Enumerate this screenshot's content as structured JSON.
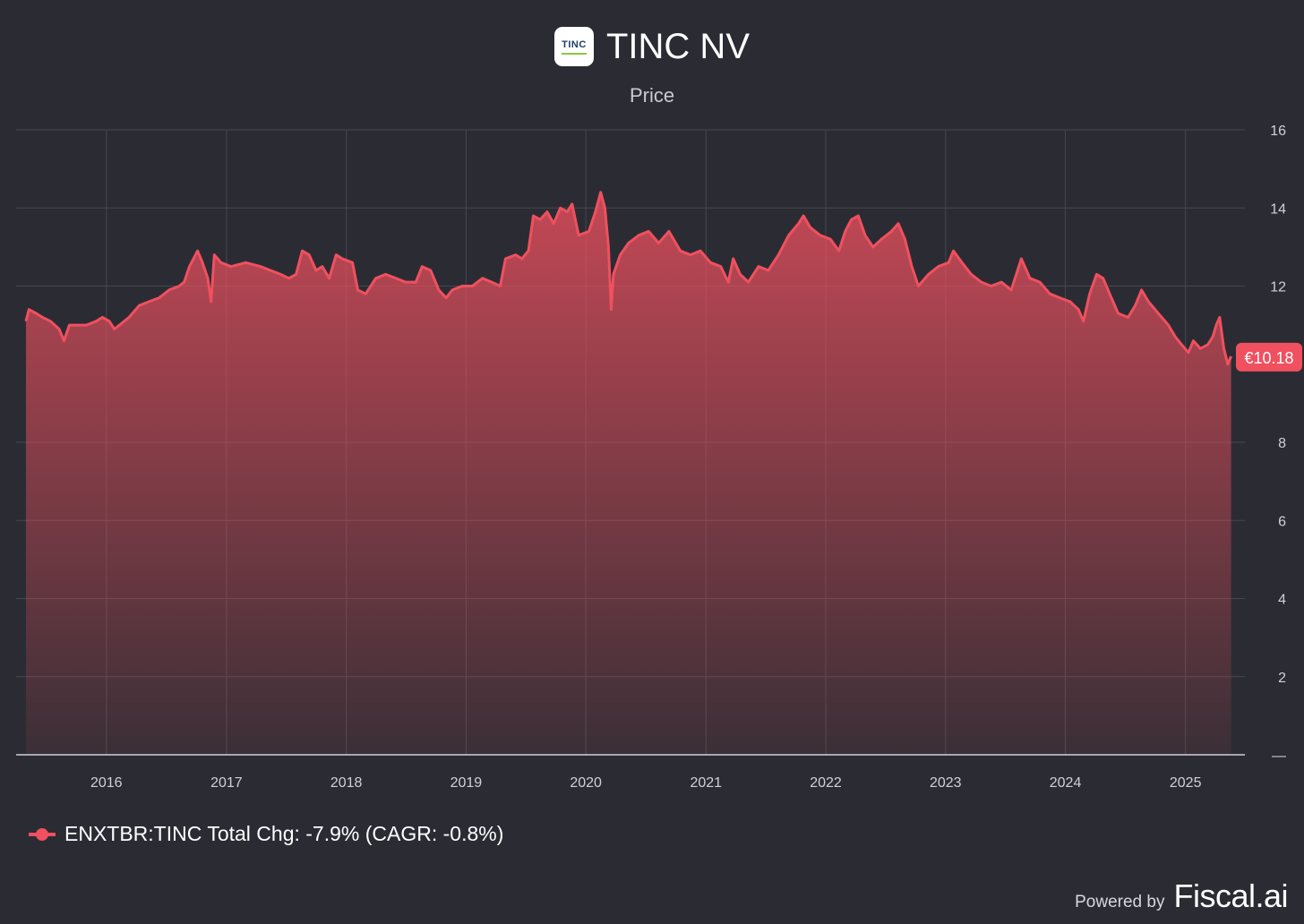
{
  "header": {
    "logo_text": "TINC",
    "title": "TINC NV",
    "subtitle": "Price"
  },
  "legend": {
    "label": "ENXTBR:TINC Total Chg: -7.9% (CAGR: -0.8%)"
  },
  "footer": {
    "powered_by": "Powered by",
    "brand": "Fiscal.ai"
  },
  "colors": {
    "background": "#2b2c33",
    "series": "#f0505f",
    "grid": "#44464f",
    "axis_text": "#d0d0d6"
  },
  "chart_data": {
    "type": "area",
    "title": "TINC NV",
    "subtitle": "Price",
    "series": [
      {
        "name": "ENXTBR:TINC",
        "points": [
          [
            "2015-05-01",
            11.1
          ],
          [
            "2015-05-10",
            11.4
          ],
          [
            "2015-06-01",
            11.3
          ],
          [
            "2015-06-20",
            11.2
          ],
          [
            "2015-07-15",
            11.1
          ],
          [
            "2015-08-10",
            10.9
          ],
          [
            "2015-08-25",
            10.6
          ],
          [
            "2015-09-10",
            11.0
          ],
          [
            "2015-10-01",
            11.0
          ],
          [
            "2015-11-01",
            11.0
          ],
          [
            "2015-12-01",
            11.1
          ],
          [
            "2015-12-20",
            11.2
          ],
          [
            "2016-01-10",
            11.1
          ],
          [
            "2016-01-25",
            10.9
          ],
          [
            "2016-02-10",
            11.0
          ],
          [
            "2016-03-10",
            11.2
          ],
          [
            "2016-04-10",
            11.5
          ],
          [
            "2016-05-10",
            11.6
          ],
          [
            "2016-06-10",
            11.7
          ],
          [
            "2016-07-10",
            11.9
          ],
          [
            "2016-08-10",
            12.0
          ],
          [
            "2016-08-25",
            12.1
          ],
          [
            "2016-09-10",
            12.5
          ],
          [
            "2016-10-05",
            12.9
          ],
          [
            "2016-10-20",
            12.6
          ],
          [
            "2016-11-05",
            12.2
          ],
          [
            "2016-11-15",
            11.6
          ],
          [
            "2016-11-25",
            12.8
          ],
          [
            "2016-12-15",
            12.6
          ],
          [
            "2017-01-15",
            12.5
          ],
          [
            "2017-03-01",
            12.6
          ],
          [
            "2017-04-15",
            12.5
          ],
          [
            "2017-05-15",
            12.4
          ],
          [
            "2017-06-15",
            12.3
          ],
          [
            "2017-07-10",
            12.2
          ],
          [
            "2017-08-01",
            12.3
          ],
          [
            "2017-08-20",
            12.9
          ],
          [
            "2017-09-10",
            12.8
          ],
          [
            "2017-10-01",
            12.4
          ],
          [
            "2017-10-20",
            12.5
          ],
          [
            "2017-11-10",
            12.2
          ],
          [
            "2017-12-01",
            12.8
          ],
          [
            "2017-12-20",
            12.7
          ],
          [
            "2018-01-20",
            12.6
          ],
          [
            "2018-02-05",
            11.9
          ],
          [
            "2018-03-01",
            11.8
          ],
          [
            "2018-04-01",
            12.2
          ],
          [
            "2018-05-01",
            12.3
          ],
          [
            "2018-06-01",
            12.2
          ],
          [
            "2018-07-01",
            12.1
          ],
          [
            "2018-08-01",
            12.1
          ],
          [
            "2018-08-20",
            12.5
          ],
          [
            "2018-09-15",
            12.4
          ],
          [
            "2018-10-10",
            11.9
          ],
          [
            "2018-11-01",
            11.7
          ],
          [
            "2018-11-20",
            11.9
          ],
          [
            "2018-12-20",
            12.0
          ],
          [
            "2019-01-20",
            12.0
          ],
          [
            "2019-02-20",
            12.2
          ],
          [
            "2019-03-20",
            12.1
          ],
          [
            "2019-04-15",
            12.0
          ],
          [
            "2019-05-01",
            12.7
          ],
          [
            "2019-06-01",
            12.8
          ],
          [
            "2019-06-20",
            12.7
          ],
          [
            "2019-07-10",
            12.9
          ],
          [
            "2019-07-25",
            13.8
          ],
          [
            "2019-08-15",
            13.7
          ],
          [
            "2019-09-05",
            13.9
          ],
          [
            "2019-09-25",
            13.6
          ],
          [
            "2019-10-15",
            14.0
          ],
          [
            "2019-11-05",
            13.9
          ],
          [
            "2019-11-20",
            14.1
          ],
          [
            "2019-12-10",
            13.3
          ],
          [
            "2020-01-10",
            13.4
          ],
          [
            "2020-01-30",
            13.9
          ],
          [
            "2020-02-15",
            14.4
          ],
          [
            "2020-02-28",
            14.0
          ],
          [
            "2020-03-10",
            13.0
          ],
          [
            "2020-03-18",
            11.4
          ],
          [
            "2020-03-25",
            12.3
          ],
          [
            "2020-04-15",
            12.8
          ],
          [
            "2020-05-10",
            13.1
          ],
          [
            "2020-06-10",
            13.3
          ],
          [
            "2020-07-10",
            13.4
          ],
          [
            "2020-08-10",
            13.1
          ],
          [
            "2020-09-10",
            13.4
          ],
          [
            "2020-10-15",
            12.9
          ],
          [
            "2020-11-15",
            12.8
          ],
          [
            "2020-12-15",
            12.9
          ],
          [
            "2021-01-15",
            12.6
          ],
          [
            "2021-02-15",
            12.5
          ],
          [
            "2021-03-10",
            12.1
          ],
          [
            "2021-03-25",
            12.7
          ],
          [
            "2021-04-15",
            12.3
          ],
          [
            "2021-05-10",
            12.1
          ],
          [
            "2021-06-10",
            12.5
          ],
          [
            "2021-07-10",
            12.4
          ],
          [
            "2021-08-10",
            12.8
          ],
          [
            "2021-09-10",
            13.3
          ],
          [
            "2021-10-10",
            13.6
          ],
          [
            "2021-10-25",
            13.8
          ],
          [
            "2021-11-15",
            13.5
          ],
          [
            "2021-12-15",
            13.3
          ],
          [
            "2022-01-15",
            13.2
          ],
          [
            "2022-02-10",
            12.9
          ],
          [
            "2022-03-01",
            13.4
          ],
          [
            "2022-03-20",
            13.7
          ],
          [
            "2022-04-10",
            13.8
          ],
          [
            "2022-05-01",
            13.3
          ],
          [
            "2022-05-25",
            13.0
          ],
          [
            "2022-06-20",
            13.2
          ],
          [
            "2022-07-20",
            13.4
          ],
          [
            "2022-08-10",
            13.6
          ],
          [
            "2022-08-30",
            13.2
          ],
          [
            "2022-09-20",
            12.5
          ],
          [
            "2022-10-10",
            12.0
          ],
          [
            "2022-11-10",
            12.3
          ],
          [
            "2022-12-10",
            12.5
          ],
          [
            "2023-01-10",
            12.6
          ],
          [
            "2023-01-25",
            12.9
          ],
          [
            "2023-02-20",
            12.6
          ],
          [
            "2023-03-20",
            12.3
          ],
          [
            "2023-04-20",
            12.1
          ],
          [
            "2023-05-20",
            12.0
          ],
          [
            "2023-06-20",
            12.1
          ],
          [
            "2023-07-20",
            11.9
          ],
          [
            "2023-08-20",
            12.7
          ],
          [
            "2023-09-15",
            12.2
          ],
          [
            "2023-10-15",
            12.1
          ],
          [
            "2023-11-15",
            11.8
          ],
          [
            "2023-12-15",
            11.7
          ],
          [
            "2024-01-15",
            11.6
          ],
          [
            "2024-02-10",
            11.4
          ],
          [
            "2024-02-25",
            11.1
          ],
          [
            "2024-03-15",
            11.8
          ],
          [
            "2024-04-05",
            12.3
          ],
          [
            "2024-04-25",
            12.2
          ],
          [
            "2024-05-15",
            11.8
          ],
          [
            "2024-06-10",
            11.3
          ],
          [
            "2024-07-10",
            11.2
          ],
          [
            "2024-08-01",
            11.5
          ],
          [
            "2024-08-20",
            11.9
          ],
          [
            "2024-09-10",
            11.6
          ],
          [
            "2024-10-10",
            11.3
          ],
          [
            "2024-11-10",
            11.0
          ],
          [
            "2024-12-01",
            10.7
          ],
          [
            "2024-12-20",
            10.5
          ],
          [
            "2025-01-10",
            10.3
          ],
          [
            "2025-01-25",
            10.6
          ],
          [
            "2025-02-15",
            10.4
          ],
          [
            "2025-03-10",
            10.5
          ],
          [
            "2025-03-25",
            10.7
          ],
          [
            "2025-04-05",
            11.0
          ],
          [
            "2025-04-15",
            11.2
          ],
          [
            "2025-04-28",
            10.4
          ],
          [
            "2025-05-10",
            10.0
          ],
          [
            "2025-05-20",
            10.2
          ]
        ]
      }
    ],
    "x_ticks": [
      "2016",
      "2017",
      "2018",
      "2019",
      "2020",
      "2021",
      "2022",
      "2023",
      "2024",
      "2025"
    ],
    "y_ticks": [
      "2",
      "4",
      "6",
      "8",
      "12",
      "14",
      "16"
    ],
    "y_zero_label": "—",
    "ylim": [
      0,
      16
    ],
    "xlim": [
      "2015-04-01",
      "2025-07-01"
    ],
    "grid": true,
    "last_value_label": "€10.18",
    "last_value": 10.18
  }
}
